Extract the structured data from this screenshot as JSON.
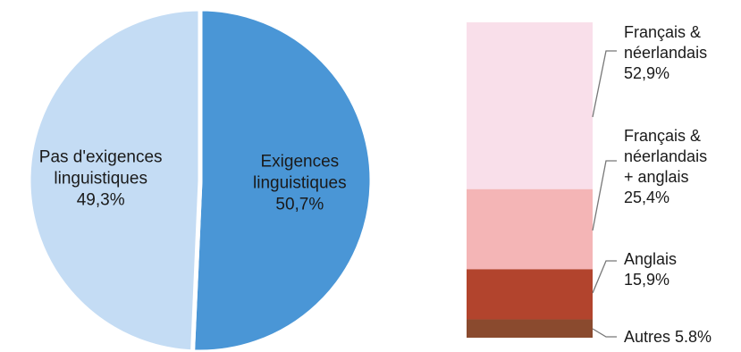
{
  "chart_data": [
    {
      "type": "pie",
      "slices": [
        {
          "label_lines": [
            "Pas d'exigences",
            "linguistiques"
          ],
          "value": 49.3,
          "value_label": "49,3%",
          "color": "#c4dcf4"
        },
        {
          "label_lines": [
            "Exigences",
            "linguistiques"
          ],
          "value": 50.7,
          "value_label": "50,7%",
          "color": "#4a96d6"
        }
      ]
    },
    {
      "type": "bar",
      "stacked": true,
      "series": [
        {
          "label_lines": [
            "Français &",
            "néerlandais"
          ],
          "value": 52.9,
          "value_label": "52,9%",
          "color": "#f9dfea"
        },
        {
          "label_lines": [
            "Français &",
            "néerlandais",
            "+ anglais"
          ],
          "value": 25.4,
          "value_label": "25,4%",
          "color": "#f4b5b6"
        },
        {
          "label_lines": [
            "Anglais"
          ],
          "value": 15.9,
          "value_label": "15,9%",
          "color": "#b2442d"
        },
        {
          "label_lines": [],
          "value": 5.8,
          "value_label": "Autres 5.8%",
          "color": "#8a4a2e"
        }
      ]
    }
  ]
}
